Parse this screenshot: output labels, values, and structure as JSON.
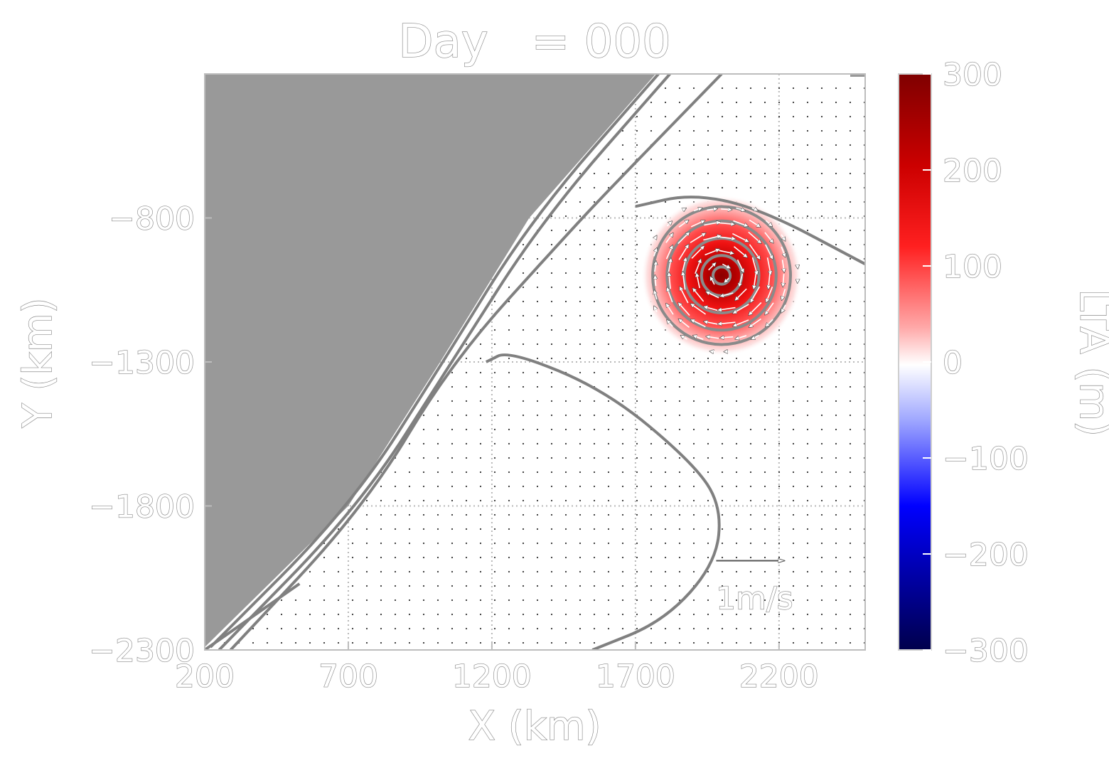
{
  "figure": {
    "title": "Day   = 000"
  },
  "chart_data": {
    "type": "heatmap",
    "title": "Day   = 000",
    "xlabel": "X (km)",
    "ylabel": "Y (km)",
    "xlim": [
      200,
      2500
    ],
    "ylim": [
      -2300,
      -300
    ],
    "xticks": [
      200,
      700,
      1200,
      1700,
      2200
    ],
    "yticks": [
      -800,
      -1300,
      -1800,
      -2300
    ],
    "xtick_labels": [
      "200",
      "700",
      "1200",
      "1700",
      "2200"
    ],
    "ytick_labels": [
      "−800",
      "−1300",
      "−1800",
      "−2300"
    ],
    "grid": true,
    "colorbar": {
      "label": "LTA (m)",
      "range": [
        -300,
        300
      ],
      "ticks": [
        300,
        200,
        100,
        0,
        -100,
        -200,
        -300
      ],
      "tick_labels": [
        "300",
        "200",
        "100",
        "0",
        "−100",
        "−200",
        "−300"
      ],
      "colormap": "seismic"
    },
    "eddy": {
      "center_x": 2000,
      "center_y": -1000,
      "radius_km": 280,
      "peak_value": 300,
      "rotation": "anticyclonic"
    },
    "land": {
      "color": "#999999",
      "boundary_points": [
        [
          1770,
          -300
        ],
        [
          1330,
          -800
        ],
        [
          1020,
          -1300
        ],
        [
          700,
          -1800
        ],
        [
          200,
          -2290
        ]
      ]
    },
    "quiver_key": {
      "label": "1m/s",
      "speed": 1,
      "x": 2100,
      "y": -1990
    },
    "contours": [
      {
        "points": [
          [
            1780,
            -300
          ],
          [
            1340,
            -800
          ],
          [
            1030,
            -1300
          ],
          [
            710,
            -1800
          ],
          [
            220,
            -2290
          ]
        ]
      },
      {
        "points": [
          [
            1820,
            -300
          ],
          [
            1380,
            -800
          ],
          [
            1060,
            -1300
          ],
          [
            740,
            -1800
          ],
          [
            250,
            -2300
          ]
        ]
      },
      {
        "points": [
          [
            2000,
            -300
          ],
          [
            1600,
            -710
          ],
          [
            1450,
            -870
          ],
          [
            1060,
            -1300
          ],
          [
            760,
            -1800
          ],
          [
            290,
            -2300
          ]
        ]
      },
      {
        "points": [
          [
            1700,
            -760
          ],
          [
            1900,
            -715
          ],
          [
            2140,
            -770
          ],
          [
            2500,
            -960
          ]
        ]
      },
      {
        "points": [
          [
            200,
            -2300
          ],
          [
            530,
            -2070
          ]
        ]
      },
      {
        "points": [
          [
            1180,
            -1300
          ],
          [
            1260,
            -1260
          ],
          [
            1600,
            -1400
          ],
          [
            1900,
            -1650
          ],
          [
            2000,
            -1800
          ],
          [
            1980,
            -2000
          ],
          [
            1800,
            -2200
          ],
          [
            1550,
            -2300
          ]
        ]
      }
    ],
    "eddy_contours_radius_km": [
      30,
      70,
      130,
      190,
      240
    ]
  }
}
